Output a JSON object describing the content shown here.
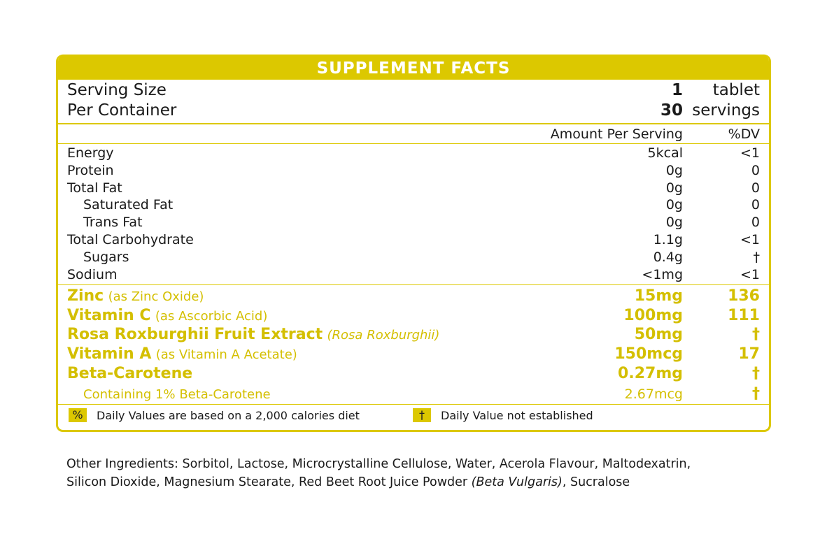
{
  "title": "SUPPLEMENT FACTS",
  "serving": [
    {
      "label": "Serving Size",
      "value": "1",
      "unit": "tablet"
    },
    {
      "label": "Per Container",
      "value": "30",
      "unit": "servings"
    }
  ],
  "columns": {
    "amount": "Amount Per Serving",
    "dv": "%DV"
  },
  "nutrients": [
    {
      "name": "Energy",
      "amount": "5kcal",
      "dv": "<1",
      "indent": false
    },
    {
      "name": "Protein",
      "amount": "0g",
      "dv": "0",
      "indent": false
    },
    {
      "name": "Total Fat",
      "amount": "0g",
      "dv": "0",
      "indent": false
    },
    {
      "name": "Saturated Fat",
      "amount": "0g",
      "dv": "0",
      "indent": true
    },
    {
      "name": "Trans Fat",
      "amount": "0g",
      "dv": "0",
      "indent": true
    },
    {
      "name": "Total Carbohydrate",
      "amount": "1.1g",
      "dv": "<1",
      "indent": false
    },
    {
      "name": "Sugars",
      "amount": "0.4g",
      "dv": "†",
      "indent": true
    },
    {
      "name": "Sodium",
      "amount": "<1mg",
      "dv": "<1",
      "indent": false
    }
  ],
  "actives": [
    {
      "name": "Zinc",
      "note": "(as Zinc Oxide)",
      "amount": "15mg",
      "dv": "136"
    },
    {
      "name": "Vitamin C",
      "note": "(as Ascorbic Acid)",
      "amount": "100mg",
      "dv": "111"
    },
    {
      "name": "Rosa Roxburghii Fruit Extract",
      "note": "(Rosa Roxburghii)",
      "amount": "50mg",
      "dv": "†"
    },
    {
      "name": "Vitamin A",
      "note": "(as Vitamin A Acetate)",
      "amount": "150mcg",
      "dv": "17"
    },
    {
      "name": "Beta-Carotene",
      "note": "",
      "amount": "0.27mg",
      "dv": "†"
    }
  ],
  "sub_active": {
    "name": "Containing 1% Beta-Carotene",
    "amount": "2.67mcg",
    "dv": "†"
  },
  "footer": [
    {
      "symbol": "%",
      "text": "Daily Values are based on a 2,000 calories diet"
    },
    {
      "symbol": "†",
      "text": "Daily Value not established"
    }
  ],
  "other": {
    "line1": "Other Ingredients: Sorbitol, Lactose, Microcrystalline Cellulose, Water, Acerola Flavour, Maltodexatrin,",
    "line2a": "Silicon Dioxide, Magnesium Stearate, Red Beet Root Juice Powder ",
    "line2b": "(Beta Vulgaris)",
    "line2c": ", Sucralose"
  },
  "colors": {
    "accent": "#dcc800",
    "accent_text": "#d4bf00"
  }
}
